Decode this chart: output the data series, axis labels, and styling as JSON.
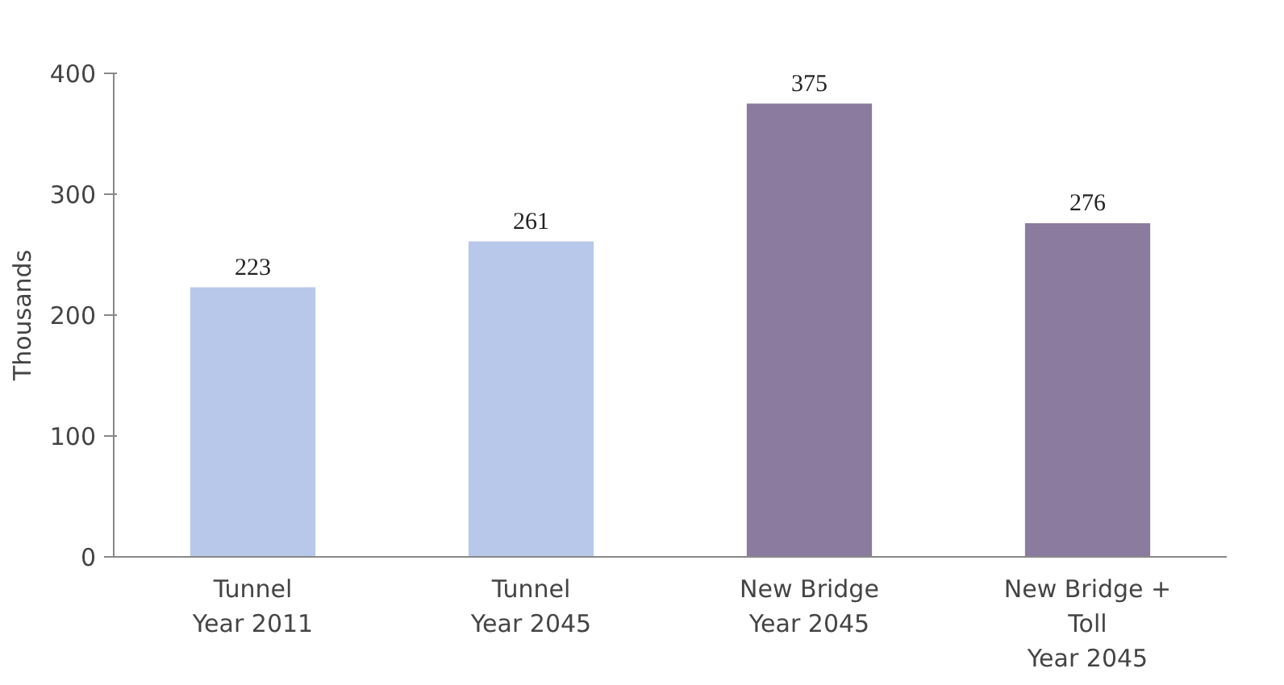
{
  "chart_data": {
    "type": "bar",
    "ylabel": "Thousands",
    "categories": [
      "Tunnel\nYear 2011",
      "Tunnel\nYear 2045",
      "New Bridge\nYear 2045",
      "New Bridge +\nToll\nYear 2045"
    ],
    "values": [
      223,
      261,
      375,
      276
    ],
    "colors": [
      "#b7c8ea",
      "#b7c8ea",
      "#8b7b9e",
      "#8b7b9e"
    ],
    "ylim": [
      0,
      400
    ],
    "yticks": [
      0,
      100,
      200,
      300,
      400
    ],
    "grid": false,
    "data_labels": true
  }
}
